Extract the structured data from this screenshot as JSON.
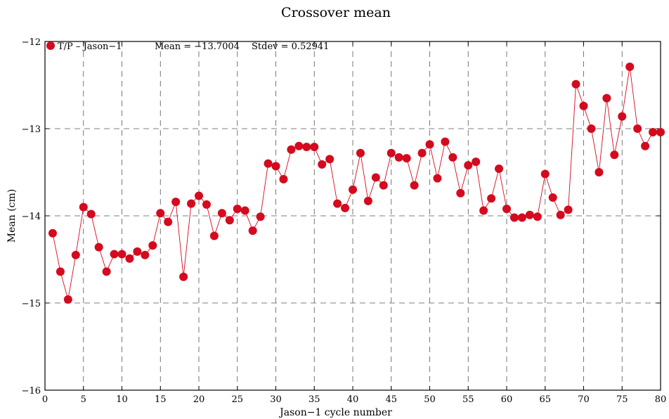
{
  "chart_data": {
    "type": "line",
    "title": "Crossover mean",
    "xlabel": "Jason−1 cycle number",
    "ylabel": "Mean (cm)",
    "xlim": [
      0,
      80
    ],
    "ylim": [
      -16,
      -12
    ],
    "grid": true,
    "x_ticks": [
      0,
      5,
      10,
      15,
      20,
      25,
      30,
      35,
      40,
      45,
      50,
      55,
      60,
      65,
      70,
      75,
      80
    ],
    "x_tick_labels": [
      "0",
      "5",
      "10",
      "15",
      "20",
      "25",
      "30",
      "35",
      "40",
      "45",
      "50",
      "55",
      "60",
      "65",
      "70",
      "75",
      "80"
    ],
    "y_ticks": [
      -16,
      -15,
      -14,
      -13,
      -12
    ],
    "y_tick_labels": [
      "−16",
      "−15",
      "−14",
      "−13",
      "−12"
    ],
    "legend": {
      "entry": "T/P – Jason−1",
      "mean_text": "Mean = −13.7004",
      "stdev_text": "Stdev = 0.52941"
    },
    "series": [
      {
        "name": "T/P – Jason−1",
        "color": "#d40a1e",
        "x": [
          1,
          2,
          3,
          4,
          5,
          6,
          7,
          8,
          9,
          10,
          11,
          12,
          13,
          14,
          15,
          16,
          17,
          18,
          19,
          20,
          21,
          22,
          23,
          24,
          25,
          26,
          27,
          28,
          29,
          30,
          31,
          32,
          33,
          34,
          35,
          36,
          37,
          38,
          39,
          40,
          41,
          42,
          43,
          44,
          45,
          46,
          47,
          48,
          49,
          50,
          51,
          52,
          53,
          54,
          55,
          56,
          57,
          58,
          59,
          60,
          61,
          62,
          63,
          64,
          65,
          66,
          67,
          68,
          69,
          70,
          71,
          72,
          73,
          74,
          75,
          76,
          77,
          78,
          79,
          80
        ],
        "y": [
          -14.2,
          -14.64,
          -14.96,
          -14.45,
          -13.9,
          -13.98,
          -14.36,
          -14.64,
          -14.44,
          -14.44,
          -14.49,
          -14.41,
          -14.45,
          -14.34,
          -13.97,
          -14.07,
          -13.84,
          -14.7,
          -13.86,
          -13.77,
          -13.87,
          -14.23,
          -13.97,
          -14.05,
          -13.92,
          -13.94,
          -14.17,
          -14.01,
          -13.4,
          -13.43,
          -13.58,
          -13.24,
          -13.2,
          -13.21,
          -13.21,
          -13.41,
          -13.35,
          -13.86,
          -13.91,
          -13.7,
          -13.28,
          -13.83,
          -13.56,
          -13.65,
          -13.28,
          -13.33,
          -13.34,
          -13.65,
          -13.28,
          -13.18,
          -13.57,
          -13.15,
          -13.33,
          -13.74,
          -13.42,
          -13.38,
          -13.94,
          -13.8,
          -13.46,
          -13.92,
          -14.02,
          -14.02,
          -13.99,
          -14.01,
          -13.52,
          -13.79,
          -13.99,
          -13.93,
          -12.49,
          -12.74,
          -13.0,
          -13.5,
          -12.65,
          -13.3,
          -12.86,
          -12.29,
          -13.0,
          -13.2,
          -13.04,
          -13.04
        ]
      }
    ]
  }
}
